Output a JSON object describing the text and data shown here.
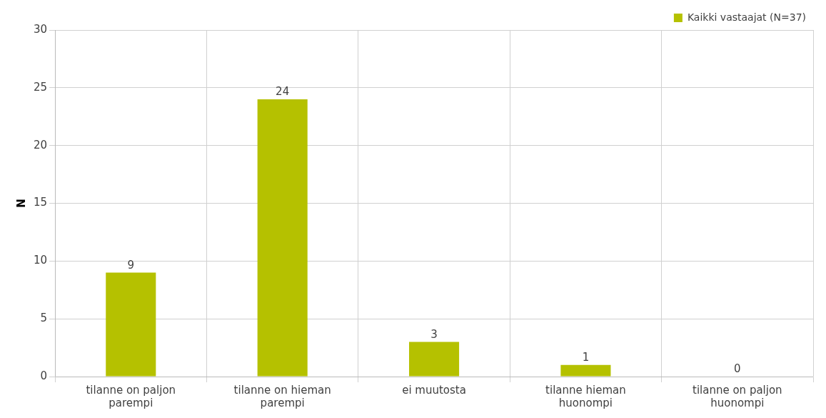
{
  "chart_data": {
    "type": "bar",
    "ylabel": "N",
    "categories": [
      "tilanne on paljon parempi",
      "tilanne on hieman parempi",
      "ei muutosta",
      "tilanne hieman huonompi",
      "tilanne on paljon huonompi"
    ],
    "series": [
      {
        "name": "Kaikki vastaajat (N=37)",
        "color": "#b5c100",
        "values": [
          9,
          24,
          3,
          1,
          0
        ]
      }
    ],
    "ylim": [
      0,
      30
    ],
    "yticks": [
      0,
      5,
      10,
      15,
      20,
      25,
      30
    ],
    "grid": true,
    "legend": "top right",
    "data_labels": true
  }
}
